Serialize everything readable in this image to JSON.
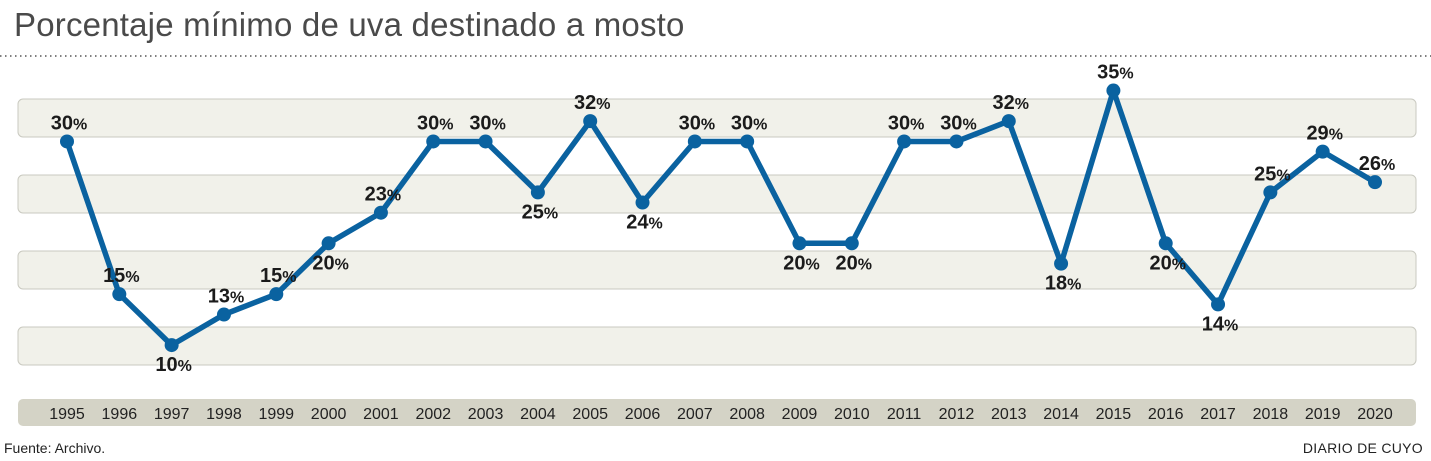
{
  "chart_data": {
    "type": "line",
    "title": "Porcentaje mínimo de uva destinado a mosto",
    "categories": [
      "1995",
      "1996",
      "1997",
      "1998",
      "1999",
      "2000",
      "2001",
      "2002",
      "2003",
      "2004",
      "2005",
      "2006",
      "2007",
      "2008",
      "2009",
      "2010",
      "2011",
      "2012",
      "2013",
      "2014",
      "2015",
      "2016",
      "2017",
      "2018",
      "2019",
      "2020"
    ],
    "values": [
      30,
      15,
      10,
      13,
      15,
      20,
      23,
      30,
      30,
      25,
      32,
      24,
      30,
      30,
      20,
      20,
      30,
      30,
      32,
      18,
      35,
      20,
      14,
      25,
      29,
      26
    ],
    "data_label_suffix": "%",
    "label_side": [
      "above",
      "above",
      "below",
      "above",
      "above",
      "below",
      "above",
      "above",
      "above",
      "below",
      "above",
      "below",
      "above",
      "above",
      "below",
      "below",
      "above",
      "above",
      "above",
      "below",
      "above",
      "below",
      "below",
      "above",
      "above",
      "above"
    ],
    "xlabel": "",
    "ylabel": "",
    "ylim": [
      5,
      38
    ],
    "grid": "alternating horizontal bands",
    "legend": "none",
    "series_color": "#0a62a0"
  },
  "footer": {
    "source": "Fuente: Archivo.",
    "credit": "DIARIO DE CUYO"
  }
}
